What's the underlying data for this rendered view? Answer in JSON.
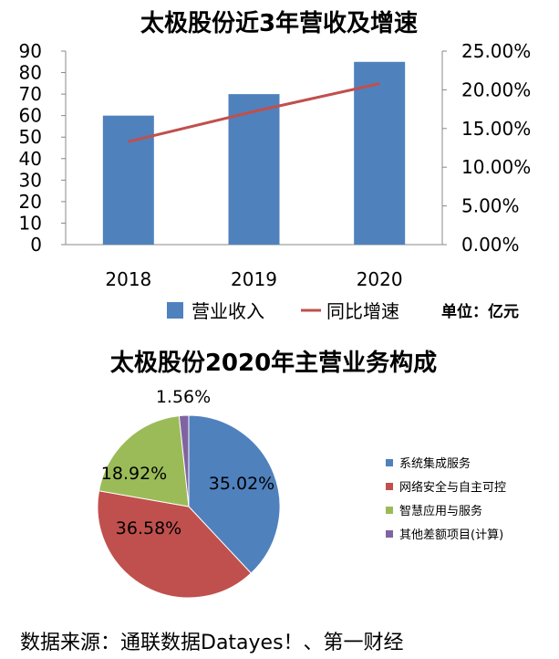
{
  "chart_data": [
    {
      "type": "bar",
      "title": "太极股份近3年营收及增速",
      "categories": [
        "2018",
        "2019",
        "2020"
      ],
      "series": [
        {
          "name": "营业收入",
          "type": "bar",
          "axis": "left",
          "values": [
            60,
            70,
            85
          ],
          "color": "#4F81BD"
        },
        {
          "name": "同比增速",
          "type": "line",
          "axis": "right",
          "values": [
            13.3,
            17.2,
            20.8
          ],
          "color": "#C0504D"
        }
      ],
      "ylim_left": [
        0,
        90
      ],
      "yticks_left": [
        "0",
        "10",
        "20",
        "30",
        "40",
        "50",
        "60",
        "70",
        "80",
        "90"
      ],
      "ylim_right": [
        0,
        25
      ],
      "yticks_right": [
        "0.00%",
        "5.00%",
        "10.00%",
        "15.00%",
        "20.00%",
        "25.00%"
      ],
      "unit_note": "单位：亿元",
      "grid": false,
      "legend_position": "bottom"
    },
    {
      "type": "pie",
      "title": "太极股份2020年主营业务构成",
      "slices": [
        {
          "name": "系统集成服务",
          "value": 35.02,
          "label": "35.02%",
          "color": "#4F81BD"
        },
        {
          "name": "网络安全与自主可控",
          "value": 36.58,
          "label": "36.58%",
          "color": "#C0504D"
        },
        {
          "name": "智慧应用与服务",
          "value": 18.92,
          "label": "18.92%",
          "color": "#9BBB59"
        },
        {
          "name": "其他差额项目(计算)",
          "value": 1.56,
          "label": "1.56%",
          "color": "#8064A2"
        }
      ],
      "legend_position": "right"
    }
  ],
  "source": "数据来源：通联数据Datayes！、第一财经"
}
